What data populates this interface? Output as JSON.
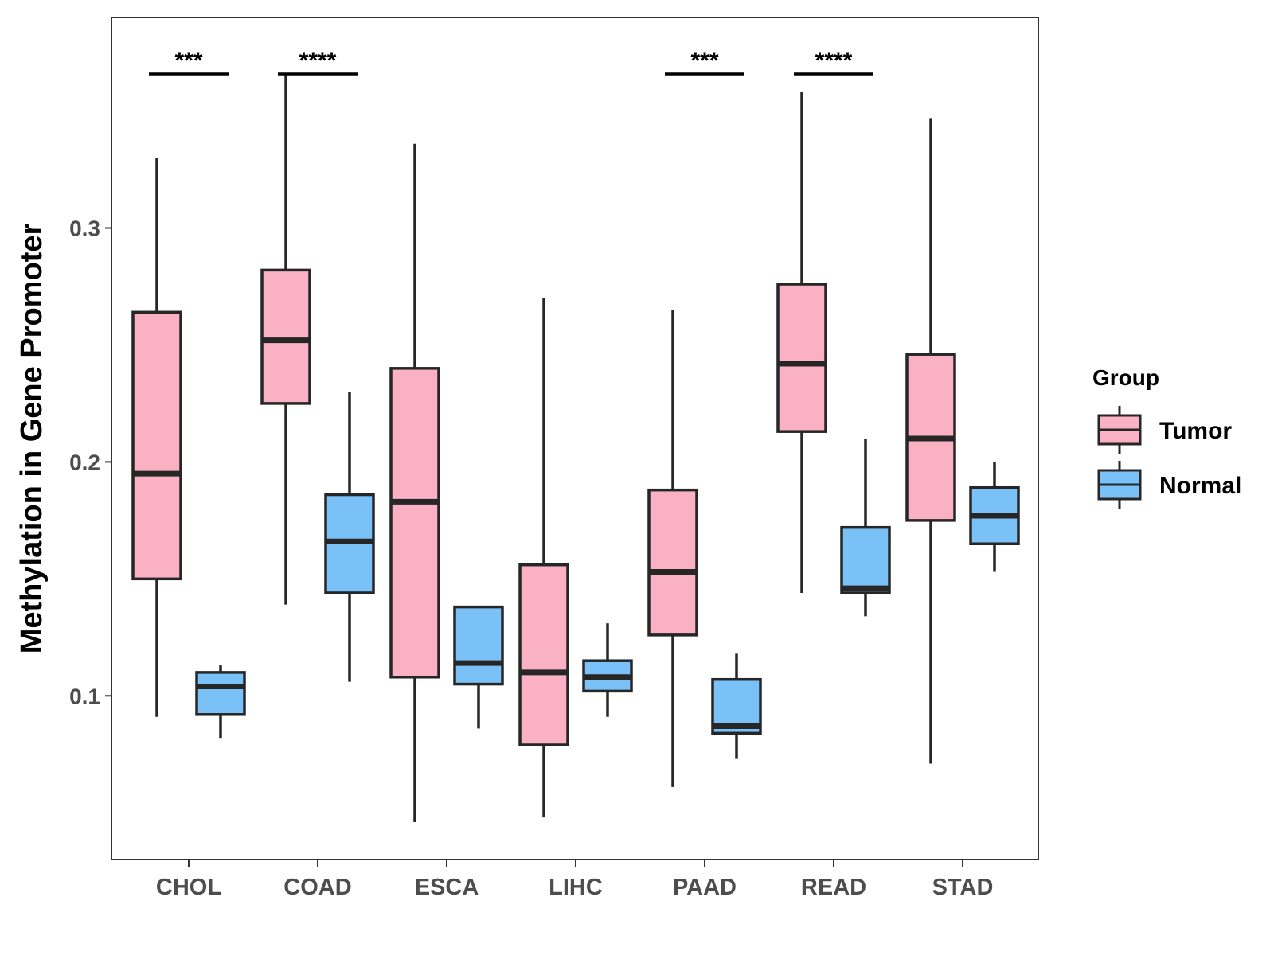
{
  "chart_data": {
    "type": "box",
    "ylabel": "Methylation in Gene Promoter",
    "xlabel": "",
    "ylim": [
      0.03,
      0.39
    ],
    "yticks": [
      0.1,
      0.2,
      0.3
    ],
    "ytick_labels": [
      "0.1",
      "0.2",
      "0.3"
    ],
    "categories": [
      "CHOL",
      "COAD",
      "ESCA",
      "LIHC",
      "PAAD",
      "READ",
      "STAD"
    ],
    "series": [
      {
        "name": "Tumor",
        "color": "#fbb1c4",
        "boxes": [
          {
            "min": 0.091,
            "q1": 0.15,
            "median": 0.195,
            "q3": 0.264,
            "max": 0.33
          },
          {
            "min": 0.139,
            "q1": 0.225,
            "median": 0.252,
            "q3": 0.282,
            "max": 0.366
          },
          {
            "min": 0.046,
            "q1": 0.108,
            "median": 0.183,
            "q3": 0.24,
            "max": 0.336
          },
          {
            "min": 0.048,
            "q1": 0.079,
            "median": 0.11,
            "q3": 0.156,
            "max": 0.27
          },
          {
            "min": 0.061,
            "q1": 0.126,
            "median": 0.153,
            "q3": 0.188,
            "max": 0.265
          },
          {
            "min": 0.144,
            "q1": 0.213,
            "median": 0.242,
            "q3": 0.276,
            "max": 0.358
          },
          {
            "min": 0.071,
            "q1": 0.175,
            "median": 0.21,
            "q3": 0.246,
            "max": 0.347
          }
        ]
      },
      {
        "name": "Normal",
        "color": "#79c1f7",
        "boxes": [
          {
            "min": 0.082,
            "q1": 0.092,
            "median": 0.104,
            "q3": 0.11,
            "max": 0.113
          },
          {
            "min": 0.106,
            "q1": 0.144,
            "median": 0.166,
            "q3": 0.186,
            "max": 0.23
          },
          {
            "min": 0.086,
            "q1": 0.105,
            "median": 0.114,
            "q3": 0.138,
            "max": 0.138
          },
          {
            "min": 0.091,
            "q1": 0.102,
            "median": 0.108,
            "q3": 0.115,
            "max": 0.131
          },
          {
            "min": 0.073,
            "q1": 0.084,
            "median": 0.087,
            "q3": 0.107,
            "max": 0.118
          },
          {
            "min": 0.134,
            "q1": 0.144,
            "median": 0.146,
            "q3": 0.172,
            "max": 0.21
          },
          {
            "min": 0.153,
            "q1": 0.165,
            "median": 0.177,
            "q3": 0.189,
            "max": 0.2
          }
        ]
      }
    ],
    "significance": [
      {
        "category": "CHOL",
        "label": "***"
      },
      {
        "category": "COAD",
        "label": "****"
      },
      {
        "category": "PAAD",
        "label": "***"
      },
      {
        "category": "READ",
        "label": "****"
      }
    ],
    "legend": {
      "title": "Group",
      "position": "right",
      "items": [
        "Tumor",
        "Normal"
      ]
    }
  }
}
